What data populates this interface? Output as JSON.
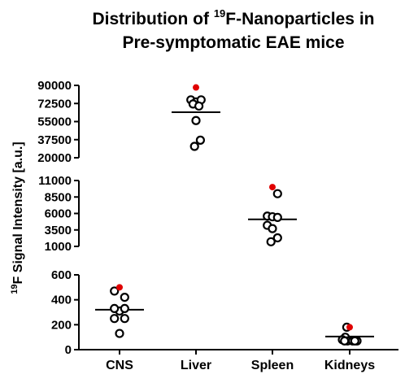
{
  "chart_data": {
    "type": "scatter",
    "title": {
      "line1_prefix": "Distribution of ",
      "line1_sup": "19",
      "line1_suffix": "F-Nanoparticles in",
      "line2": "Pre-symptomatic EAE mice"
    },
    "ylabel": {
      "sup": "19",
      "text": "F Signal Intensity [a.u.]"
    },
    "categories": [
      "CNS",
      "Liver",
      "Spleen",
      "Kidneys"
    ],
    "segments": [
      {
        "name": "low",
        "ylim": [
          0,
          600
        ],
        "ticks": [
          0,
          200,
          400,
          600
        ]
      },
      {
        "name": "mid",
        "ylim": [
          1000,
          11000
        ],
        "ticks": [
          1000,
          3500,
          6000,
          8500,
          11000
        ]
      },
      {
        "name": "high",
        "ylim": [
          20000,
          90000
        ],
        "ticks": [
          20000,
          37500,
          55000,
          72500,
          90000
        ]
      }
    ],
    "points": {
      "CNS": [
        [
          470,
          -0.35
        ],
        [
          420,
          0.35
        ],
        [
          310,
          0.0
        ],
        [
          330,
          -0.35
        ],
        [
          330,
          0.35
        ],
        [
          250,
          -0.35
        ],
        [
          250,
          0.35
        ],
        [
          130,
          0.0
        ]
      ],
      "Liver": [
        [
          76000,
          -0.35
        ],
        [
          74000,
          0.0
        ],
        [
          76000,
          0.35
        ],
        [
          72000,
          -0.2
        ],
        [
          70000,
          0.2
        ],
        [
          56000,
          0.0
        ],
        [
          37000,
          0.3
        ],
        [
          31000,
          -0.1
        ]
      ],
      "Spleen": [
        [
          9000,
          0.35
        ],
        [
          5600,
          -0.35
        ],
        [
          5500,
          0.0
        ],
        [
          5400,
          0.35
        ],
        [
          4200,
          -0.35
        ],
        [
          3700,
          0.0
        ],
        [
          2300,
          0.35
        ],
        [
          1700,
          -0.1
        ]
      ],
      "Kidneys": [
        [
          180,
          -0.2
        ],
        [
          100,
          -0.3
        ],
        [
          80,
          -0.5
        ],
        [
          70,
          -0.15
        ],
        [
          70,
          0.2
        ],
        [
          70,
          0.5
        ],
        [
          70,
          -0.35
        ],
        [
          70,
          0.35
        ]
      ]
    },
    "highlight_points": {
      "CNS": 500,
      "Liver": 88000,
      "Spleen": 10000,
      "Kidneys": 180
    },
    "means": {
      "CNS": 320,
      "Liver": 64000,
      "Spleen": 5100,
      "Kidneys": 105
    },
    "colors": {
      "point_stroke": "#000000",
      "highlight": "#e00000",
      "mean_line": "#000000"
    }
  }
}
